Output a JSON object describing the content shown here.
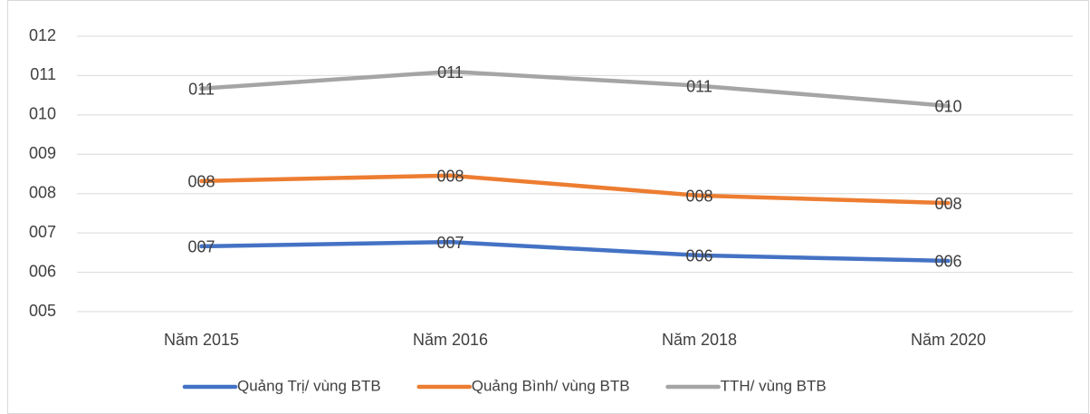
{
  "chart_data": {
    "type": "line",
    "categories": [
      "Năm 2015",
      "Năm 2016",
      "Năm 2018",
      "Năm 2020"
    ],
    "series": [
      {
        "name": "Quảng Trị/ vùng BTB",
        "color": "#4472c4",
        "values": [
          6.66,
          6.77,
          6.43,
          6.29
        ],
        "value_labels": [
          "007",
          "007",
          "006",
          "006"
        ]
      },
      {
        "name": "Quảng Bình/ vùng BTB",
        "color": "#ed7d31",
        "values": [
          8.32,
          8.46,
          7.95,
          7.76
        ],
        "value_labels": [
          "008",
          "008",
          "008",
          "008"
        ]
      },
      {
        "name": "TTH/ vùng BTB",
        "color": "#a5a5a5",
        "values": [
          10.67,
          11.1,
          10.74,
          10.23
        ],
        "value_labels": [
          "011",
          "011",
          "011",
          "010"
        ]
      }
    ],
    "ylim": [
      5,
      12
    ],
    "yticks": [
      {
        "value": 5,
        "label": "005"
      },
      {
        "value": 6,
        "label": "006"
      },
      {
        "value": 7,
        "label": "007"
      },
      {
        "value": 8,
        "label": "008"
      },
      {
        "value": 9,
        "label": "009"
      },
      {
        "value": 10,
        "label": "010"
      },
      {
        "value": 11,
        "label": "011"
      },
      {
        "value": 12,
        "label": "012"
      }
    ],
    "grid": true,
    "legend": "bottom"
  }
}
